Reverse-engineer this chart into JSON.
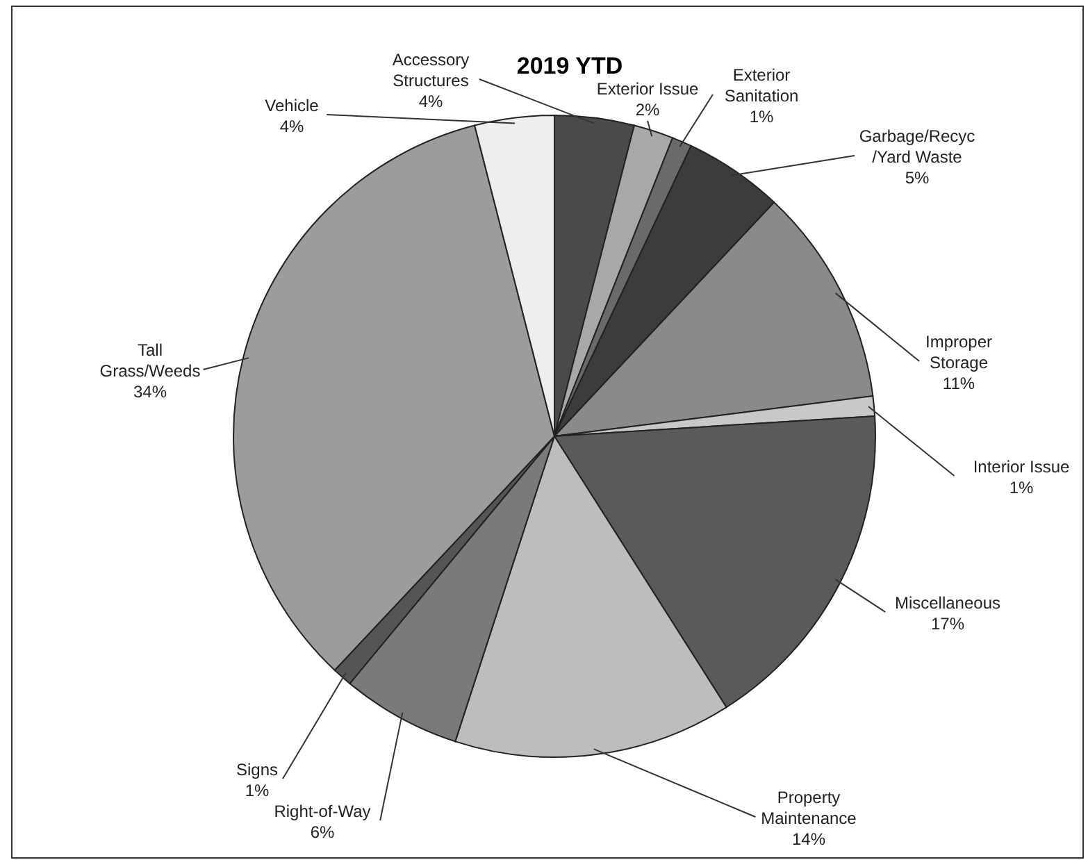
{
  "chart_data": {
    "type": "pie",
    "title": "2019 YTD",
    "categories": [
      "Accessory Structures",
      "Exterior Issue",
      "Exterior Sanitation",
      "Garbage/Recyc /Yard Waste",
      "Improper Storage",
      "Interior Issue",
      "Miscellaneous",
      "Property Maintenance",
      "Right-of-Way",
      "Signs",
      "Tall Grass/Weeds",
      "Vehicle"
    ],
    "values": [
      4,
      2,
      1,
      5,
      11,
      1,
      17,
      14,
      6,
      1,
      34,
      4
    ],
    "value_labels": [
      "4%",
      "2%",
      "1%",
      "5%",
      "11%",
      "1%",
      "17%",
      "14%",
      "6%",
      "1%",
      "34%",
      "4%"
    ],
    "colors": [
      "#4a4a4a",
      "#a8a8a8",
      "#6a6a6a",
      "#3c3c3c",
      "#8a8a8a",
      "#c8c8c8",
      "#5a5a5a",
      "#bdbdbd",
      "#7a7a7a",
      "#555555",
      "#9c9c9c",
      "#eeeeee"
    ]
  }
}
